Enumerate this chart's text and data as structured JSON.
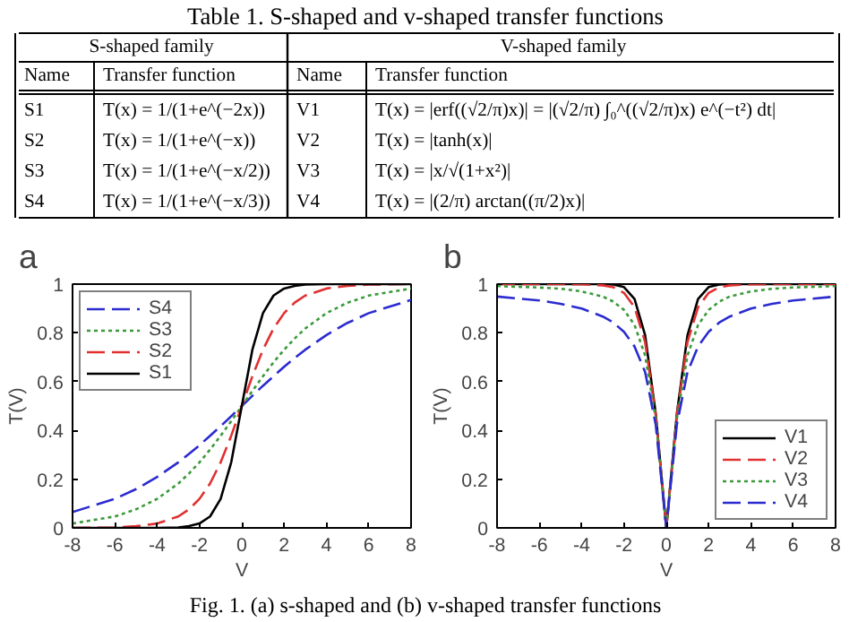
{
  "chart_data": [
    {
      "type": "other",
      "title": "Table 1. S-shaped and v-shaped transfer functions",
      "annotations": [
        "S-shaped family",
        "V-shaped family",
        "Name",
        "Transfer function",
        "Name",
        "Transfer function",
        "S1",
        "T(x) = 1/(1+e^(−2x))",
        "V1",
        "T(x) = |erf((√2/π)x)| = |(√2/π) ∫₀^((√2/π)x) e^(−t²) dt|",
        "S2",
        "T(x) = 1/(1+e^(−x))",
        "V2",
        "T(x) = |tanh(x)|",
        "S3",
        "T(x) = 1/(1+e^(−x/2))",
        "V3",
        "T(x) = |x/√(1+x²)|",
        "S4",
        "T(x) = 1/(1+e^(−x/3))",
        "V4",
        "T(x) = |(2/π) arctan((π/2)x)|"
      ]
    },
    {
      "type": "line",
      "title": "a",
      "xlabel": "V",
      "ylabel": "T(V)",
      "xlim": [
        -8,
        8
      ],
      "xticks": [
        -8,
        -6,
        -4,
        -2,
        0,
        2,
        4,
        6,
        8
      ],
      "ylim": [
        0,
        1
      ],
      "yticks": [
        0,
        0.2,
        0.4,
        0.6,
        0.8,
        1
      ],
      "grid": false,
      "legend": "top left",
      "x": [
        -8,
        -6,
        -5,
        -4,
        -3,
        -2.5,
        -2,
        -1.5,
        -1,
        -0.5,
        0,
        0.5,
        1,
        1.5,
        2,
        2.5,
        3,
        4,
        5,
        6,
        8
      ],
      "series": [
        {
          "name": "S4",
          "color": "#2b2bd0",
          "line_style": "dashed",
          "values": [
            0.065,
            0.119,
            0.159,
            0.209,
            0.269,
            0.303,
            0.339,
            0.378,
            0.417,
            0.458,
            0.5,
            0.542,
            0.583,
            0.622,
            0.661,
            0.697,
            0.731,
            0.791,
            0.841,
            0.881,
            0.935
          ]
        },
        {
          "name": "S3",
          "color": "#3a9a3a",
          "line_style": "dotted",
          "values": [
            0.018,
            0.047,
            0.076,
            0.119,
            0.182,
            0.223,
            0.269,
            0.321,
            0.378,
            0.438,
            0.5,
            0.562,
            0.622,
            0.679,
            0.731,
            0.777,
            0.818,
            0.881,
            0.924,
            0.953,
            0.982
          ]
        },
        {
          "name": "S2",
          "color": "#e03030",
          "line_style": "dashed",
          "values": [
            0,
            0.002,
            0.007,
            0.018,
            0.047,
            0.076,
            0.119,
            0.182,
            0.269,
            0.378,
            0.5,
            0.622,
            0.731,
            0.818,
            0.881,
            0.924,
            0.953,
            0.982,
            0.993,
            0.998,
            1
          ]
        },
        {
          "name": "S1",
          "color": "#000000",
          "line_style": "solid",
          "values": [
            0,
            0,
            0,
            0,
            0.002,
            0.007,
            0.018,
            0.047,
            0.119,
            0.269,
            0.5,
            0.731,
            0.881,
            0.953,
            0.982,
            0.993,
            0.998,
            1,
            1,
            1,
            1
          ]
        }
      ]
    },
    {
      "type": "line",
      "title": "b",
      "xlabel": "V",
      "ylabel": "T(V)",
      "xlim": [
        -8,
        8
      ],
      "xticks": [
        -8,
        -6,
        -4,
        -2,
        0,
        2,
        4,
        6,
        8
      ],
      "ylim": [
        0,
        1
      ],
      "yticks": [
        0,
        0.2,
        0.4,
        0.6,
        0.8,
        1
      ],
      "grid": false,
      "legend": "bottom right",
      "annotations": [
        "Fig. 1. (a) s-shaped and (b) v-shaped transfer functions"
      ],
      "x": [
        -8,
        -6,
        -5,
        -4,
        -3,
        -2.5,
        -2,
        -1.5,
        -1,
        -0.5,
        0,
        0.5,
        1,
        1.5,
        2,
        2.5,
        3,
        4,
        5,
        6,
        8
      ],
      "series": [
        {
          "name": "V1",
          "color": "#000000",
          "line_style": "solid",
          "values": [
            1,
            1,
            1,
            1,
            1,
            0.998,
            0.988,
            0.939,
            0.79,
            0.469,
            0,
            0.469,
            0.79,
            0.939,
            0.988,
            0.998,
            1,
            1,
            1,
            1,
            1
          ]
        },
        {
          "name": "V2",
          "color": "#e03030",
          "line_style": "dashed",
          "values": [
            1,
            1,
            1,
            0.999,
            0.995,
            0.987,
            0.964,
            0.905,
            0.762,
            0.462,
            0,
            0.462,
            0.762,
            0.905,
            0.964,
            0.987,
            0.995,
            0.999,
            1,
            1,
            1
          ]
        },
        {
          "name": "V3",
          "color": "#3a9a3a",
          "line_style": "dotted",
          "values": [
            0.992,
            0.986,
            0.981,
            0.97,
            0.949,
            0.928,
            0.894,
            0.832,
            0.707,
            0.447,
            0,
            0.447,
            0.707,
            0.832,
            0.894,
            0.928,
            0.949,
            0.97,
            0.981,
            0.986,
            0.992
          ]
        },
        {
          "name": "V4",
          "color": "#2b2bd0",
          "line_style": "dashed",
          "values": [
            0.949,
            0.933,
            0.919,
            0.9,
            0.867,
            0.842,
            0.804,
            0.744,
            0.639,
            0.424,
            0,
            0.424,
            0.639,
            0.744,
            0.804,
            0.842,
            0.867,
            0.9,
            0.919,
            0.933,
            0.949
          ]
        }
      ]
    }
  ]
}
